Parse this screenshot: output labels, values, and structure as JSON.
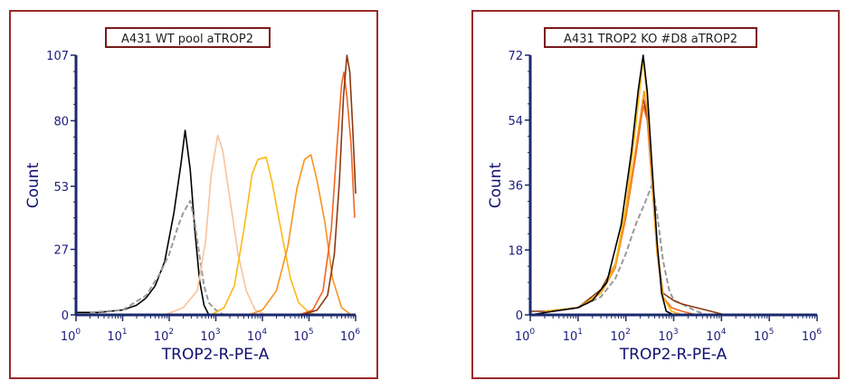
{
  "chart_data": [
    {
      "type": "line",
      "title": "A431 WT pool aTROP2",
      "xlabel": "TROP2-R-PE-A",
      "ylabel": "Count",
      "xscale": "log",
      "xlim": [
        1,
        1000000
      ],
      "ylim": [
        0,
        107
      ],
      "x_ticks": [
        "0",
        "1",
        "2",
        "3",
        "4",
        "5",
        "6"
      ],
      "x_tick_base": "10",
      "y_ticks": [
        "0",
        "27",
        "53",
        "80",
        "107"
      ],
      "y_tick_values": [
        0,
        27,
        53,
        80,
        107
      ],
      "grid": false,
      "series": [
        {
          "color": "#000000",
          "dashed": false,
          "points": [
            [
              1,
              1
            ],
            [
              3,
              1
            ],
            [
              10,
              2
            ],
            [
              20,
              4
            ],
            [
              32,
              7
            ],
            [
              50,
              12
            ],
            [
              80,
              22
            ],
            [
              126,
              42
            ],
            [
              178,
              62
            ],
            [
              220,
              76
            ],
            [
              282,
              60
            ],
            [
              355,
              35
            ],
            [
              450,
              14
            ],
            [
              560,
              4
            ],
            [
              708,
              0
            ],
            [
              1000,
              0
            ]
          ]
        },
        {
          "color": "#9a9a9a",
          "dashed": true,
          "points": [
            [
              2,
              1
            ],
            [
              10,
              2
            ],
            [
              32,
              8
            ],
            [
              63,
              17
            ],
            [
              100,
              25
            ],
            [
              158,
              37
            ],
            [
              200,
              42
            ],
            [
              282,
              47
            ],
            [
              355,
              38
            ],
            [
              450,
              24
            ],
            [
              560,
              12
            ],
            [
              708,
              5
            ],
            [
              1000,
              2
            ],
            [
              1500,
              0
            ]
          ]
        },
        {
          "color": "#f8c39c",
          "dashed": false,
          "points": [
            [
              80,
              0
            ],
            [
              200,
              3
            ],
            [
              400,
              10
            ],
            [
              600,
              30
            ],
            [
              800,
              58
            ],
            [
              1100,
              74
            ],
            [
              1400,
              68
            ],
            [
              2000,
              48
            ],
            [
              3000,
              25
            ],
            [
              4500,
              10
            ],
            [
              7000,
              2
            ],
            [
              12000,
              0
            ]
          ]
        },
        {
          "color": "#fdb813",
          "dashed": false,
          "points": [
            [
              800,
              0
            ],
            [
              1500,
              3
            ],
            [
              2500,
              12
            ],
            [
              4000,
              35
            ],
            [
              6000,
              58
            ],
            [
              8000,
              64
            ],
            [
              12000,
              65
            ],
            [
              16000,
              55
            ],
            [
              25000,
              35
            ],
            [
              40000,
              15
            ],
            [
              60000,
              5
            ],
            [
              100000,
              1
            ],
            [
              150000,
              0
            ]
          ]
        },
        {
          "color": "#f7941d",
          "dashed": false,
          "points": [
            [
              5000,
              0
            ],
            [
              10000,
              2
            ],
            [
              20000,
              10
            ],
            [
              35000,
              28
            ],
            [
              55000,
              52
            ],
            [
              80000,
              64
            ],
            [
              110000,
              66
            ],
            [
              150000,
              55
            ],
            [
              220000,
              38
            ],
            [
              320000,
              15
            ],
            [
              500000,
              3
            ],
            [
              800000,
              0
            ]
          ]
        },
        {
          "color": "#f26522",
          "dashed": false,
          "points": [
            [
              60000,
              0
            ],
            [
              120000,
              2
            ],
            [
              200000,
              10
            ],
            [
              300000,
              35
            ],
            [
              400000,
              70
            ],
            [
              500000,
              95
            ],
            [
              560000,
              100
            ],
            [
              650000,
              90
            ],
            [
              800000,
              70
            ],
            [
              950000,
              40
            ]
          ]
        },
        {
          "color": "#8b3a0f",
          "dashed": false,
          "points": [
            [
              70000,
              0
            ],
            [
              150000,
              2
            ],
            [
              250000,
              8
            ],
            [
              350000,
              25
            ],
            [
              450000,
              55
            ],
            [
              550000,
              90
            ],
            [
              650000,
              107
            ],
            [
              750000,
              100
            ],
            [
              850000,
              80
            ],
            [
              950000,
              60
            ],
            [
              1000000,
              50
            ]
          ]
        }
      ]
    },
    {
      "type": "line",
      "title": "A431 TROP2 KO #D8 aTROP2",
      "xlabel": "TROP2-R-PE-A",
      "ylabel": "Count",
      "xscale": "log",
      "xlim": [
        1,
        1000000
      ],
      "ylim": [
        0,
        72
      ],
      "x_ticks": [
        "0",
        "1",
        "2",
        "3",
        "4",
        "5",
        "6"
      ],
      "x_tick_base": "10",
      "y_ticks": [
        "0",
        "18",
        "36",
        "54",
        "72"
      ],
      "y_tick_values": [
        0,
        18,
        36,
        54,
        72
      ],
      "grid": false,
      "series": [
        {
          "color": "#9a9a9a",
          "dashed": true,
          "points": [
            [
              2,
              1
            ],
            [
              10,
              2
            ],
            [
              30,
              5
            ],
            [
              60,
              10
            ],
            [
              100,
              17
            ],
            [
              160,
              25
            ],
            [
              250,
              31
            ],
            [
              350,
              36
            ],
            [
              450,
              28
            ],
            [
              600,
              15
            ],
            [
              800,
              7
            ],
            [
              1000,
              4
            ],
            [
              1500,
              3
            ],
            [
              3000,
              1
            ],
            [
              5000,
              0
            ]
          ]
        },
        {
          "color": "#8b3a0f",
          "dashed": false,
          "points": [
            [
              1,
              1
            ],
            [
              3,
              1
            ],
            [
              10,
              2
            ],
            [
              30,
              7
            ],
            [
              60,
              14
            ],
            [
              100,
              28
            ],
            [
              160,
              45
            ],
            [
              230,
              60
            ],
            [
              280,
              55
            ],
            [
              350,
              38
            ],
            [
              450,
              18
            ],
            [
              600,
              6
            ],
            [
              1000,
              4
            ],
            [
              1500,
              3
            ],
            [
              3000,
              2
            ],
            [
              6000,
              1
            ],
            [
              12000,
              0
            ]
          ]
        },
        {
          "color": "#f26522",
          "dashed": false,
          "points": [
            [
              2,
              1
            ],
            [
              10,
              2
            ],
            [
              30,
              6
            ],
            [
              60,
              13
            ],
            [
              100,
              27
            ],
            [
              160,
              44
            ],
            [
              230,
              58
            ],
            [
              280,
              54
            ],
            [
              350,
              37
            ],
            [
              450,
              17
            ],
            [
              600,
              5
            ],
            [
              900,
              2
            ],
            [
              1500,
              1
            ],
            [
              3000,
              0
            ]
          ]
        },
        {
          "color": "#f7941d",
          "dashed": false,
          "points": [
            [
              2,
              1
            ],
            [
              10,
              2
            ],
            [
              30,
              6
            ],
            [
              60,
              13
            ],
            [
              100,
              28
            ],
            [
              160,
              46
            ],
            [
              240,
              62
            ],
            [
              290,
              55
            ],
            [
              350,
              38
            ],
            [
              450,
              17
            ],
            [
              600,
              5
            ],
            [
              900,
              1
            ],
            [
              1500,
              0
            ]
          ]
        },
        {
          "color": "#fdb813",
          "dashed": false,
          "points": [
            [
              2,
              1
            ],
            [
              10,
              2
            ],
            [
              30,
              6
            ],
            [
              60,
              14
            ],
            [
              100,
              30
            ],
            [
              160,
              52
            ],
            [
              230,
              71
            ],
            [
              280,
              60
            ],
            [
              350,
              40
            ],
            [
              450,
              18
            ],
            [
              600,
              5
            ],
            [
              900,
              1
            ],
            [
              1500,
              0
            ]
          ]
        },
        {
          "color": "#000000",
          "dashed": false,
          "points": [
            [
              1,
              0
            ],
            [
              3,
              1
            ],
            [
              10,
              2
            ],
            [
              20,
              4
            ],
            [
              40,
              9
            ],
            [
              80,
              25
            ],
            [
              130,
              45
            ],
            [
              180,
              62
            ],
            [
              230,
              72
            ],
            [
              280,
              62
            ],
            [
              350,
              42
            ],
            [
              450,
              20
            ],
            [
              560,
              6
            ],
            [
              700,
              1
            ],
            [
              1000,
              0
            ]
          ]
        }
      ]
    }
  ],
  "colors": {
    "frame": "#9b2a2a",
    "axis": "#1a2a6c",
    "label": "#1c1c7c"
  }
}
